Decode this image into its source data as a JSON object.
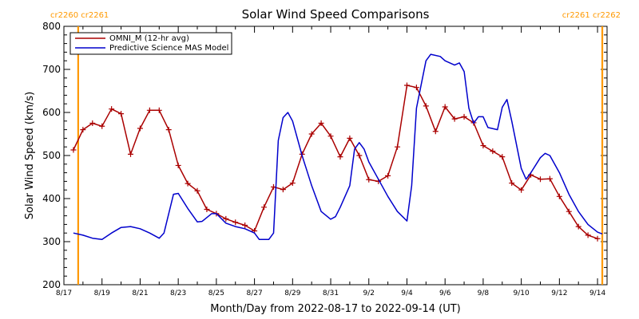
{
  "chart_data": {
    "type": "line",
    "title": "Solar Wind Speed Comparisons",
    "xlabel": "Month/Day from 2022-08-17 to 2022-09-14 (UT)",
    "ylabel": "Solar Wind Speed (km/s)",
    "x_axis": {
      "start": "2022-08-17",
      "end": "2022-09-14T12:00",
      "tick_labels": [
        "8/17",
        "8/19",
        "8/21",
        "8/23",
        "8/25",
        "8/27",
        "8/29",
        "8/31",
        "9/2",
        "9/4",
        "9/6",
        "9/8",
        "9/10",
        "9/12",
        "9/14"
      ]
    },
    "ylim": [
      200,
      800
    ],
    "y_ticks": [
      200,
      300,
      400,
      500,
      600,
      700,
      800
    ],
    "grid": false,
    "legend_position": "top-left",
    "series": [
      {
        "name": "OMNI_M (12-hr avg)",
        "color": "#aa0000",
        "marker": "plus",
        "points": [
          [
            "2022-08-17T12:00",
            513
          ],
          [
            "2022-08-18T00:00",
            560
          ],
          [
            "2022-08-18T12:00",
            575
          ],
          [
            "2022-08-19T00:00",
            568
          ],
          [
            "2022-08-19T12:00",
            608
          ],
          [
            "2022-08-20T00:00",
            597
          ],
          [
            "2022-08-20T12:00",
            503
          ],
          [
            "2022-08-21T00:00",
            563
          ],
          [
            "2022-08-21T12:00",
            605
          ],
          [
            "2022-08-22T00:00",
            605
          ],
          [
            "2022-08-22T12:00",
            560
          ],
          [
            "2022-08-23T00:00",
            477
          ],
          [
            "2022-08-23T12:00",
            435
          ],
          [
            "2022-08-24T00:00",
            418
          ],
          [
            "2022-08-24T12:00",
            375
          ],
          [
            "2022-08-25T00:00",
            365
          ],
          [
            "2022-08-25T12:00",
            353
          ],
          [
            "2022-08-26T00:00",
            345
          ],
          [
            "2022-08-26T12:00",
            338
          ],
          [
            "2022-08-27T00:00",
            325
          ],
          [
            "2022-08-27T12:00",
            380
          ],
          [
            "2022-08-28T00:00",
            427
          ],
          [
            "2022-08-28T12:00",
            421
          ],
          [
            "2022-08-29T00:00",
            436
          ],
          [
            "2022-08-29T12:00",
            503
          ],
          [
            "2022-08-30T00:00",
            550
          ],
          [
            "2022-08-30T12:00",
            575
          ],
          [
            "2022-08-31T00:00",
            545
          ],
          [
            "2022-08-31T12:00",
            497
          ],
          [
            "2022-09-01T00:00",
            540
          ],
          [
            "2022-09-01T12:00",
            500
          ],
          [
            "2022-09-02T00:00",
            444
          ],
          [
            "2022-09-02T12:00",
            440
          ],
          [
            "2022-09-03T00:00",
            453
          ],
          [
            "2022-09-03T12:00",
            520
          ],
          [
            "2022-09-04T00:00",
            663
          ],
          [
            "2022-09-04T12:00",
            658
          ],
          [
            "2022-09-05T00:00",
            615
          ],
          [
            "2022-09-05T12:00",
            556
          ],
          [
            "2022-09-06T00:00",
            613
          ],
          [
            "2022-09-06T12:00",
            585
          ],
          [
            "2022-09-07T00:00",
            590
          ],
          [
            "2022-09-07T12:00",
            576
          ],
          [
            "2022-09-08T00:00",
            523
          ],
          [
            "2022-09-08T12:00",
            510
          ],
          [
            "2022-09-09T00:00",
            497
          ],
          [
            "2022-09-09T12:00",
            436
          ],
          [
            "2022-09-10T00:00",
            420
          ],
          [
            "2022-09-10T12:00",
            455
          ],
          [
            "2022-09-11T00:00",
            445
          ],
          [
            "2022-09-11T12:00",
            446
          ],
          [
            "2022-09-12T00:00",
            405
          ],
          [
            "2022-09-12T12:00",
            370
          ],
          [
            "2022-09-13T00:00",
            335
          ],
          [
            "2022-09-13T12:00",
            315
          ],
          [
            "2022-09-14T00:00",
            307
          ]
        ]
      },
      {
        "name": "Predictive Science MAS Model",
        "color": "#0000cc",
        "marker": "none",
        "points": [
          [
            "2022-08-17T12:00",
            320
          ],
          [
            "2022-08-18T00:00",
            315
          ],
          [
            "2022-08-18T12:00",
            308
          ],
          [
            "2022-08-19T00:00",
            305
          ],
          [
            "2022-08-19T12:00",
            320
          ],
          [
            "2022-08-20T00:00",
            333
          ],
          [
            "2022-08-20T12:00",
            335
          ],
          [
            "2022-08-21T00:00",
            330
          ],
          [
            "2022-08-21T12:00",
            320
          ],
          [
            "2022-08-22T00:00",
            308
          ],
          [
            "2022-08-22T06:00",
            320
          ],
          [
            "2022-08-22T18:00",
            410
          ],
          [
            "2022-08-23T00:00",
            412
          ],
          [
            "2022-08-23T12:00",
            377
          ],
          [
            "2022-08-24T00:00",
            346
          ],
          [
            "2022-08-24T06:00",
            347
          ],
          [
            "2022-08-24T18:00",
            365
          ],
          [
            "2022-08-25T00:00",
            365
          ],
          [
            "2022-08-25T12:00",
            343
          ],
          [
            "2022-08-26T00:00",
            335
          ],
          [
            "2022-08-26T12:00",
            330
          ],
          [
            "2022-08-27T00:00",
            320
          ],
          [
            "2022-08-27T06:00",
            305
          ],
          [
            "2022-08-27T18:00",
            305
          ],
          [
            "2022-08-28T00:00",
            320
          ],
          [
            "2022-08-28T06:00",
            535
          ],
          [
            "2022-08-28T12:00",
            588
          ],
          [
            "2022-08-28T18:00",
            600
          ],
          [
            "2022-08-29T00:00",
            580
          ],
          [
            "2022-08-29T12:00",
            500
          ],
          [
            "2022-08-30T00:00",
            430
          ],
          [
            "2022-08-30T12:00",
            370
          ],
          [
            "2022-08-31T00:00",
            352
          ],
          [
            "2022-08-31T06:00",
            358
          ],
          [
            "2022-08-31T12:00",
            380
          ],
          [
            "2022-09-01T00:00",
            430
          ],
          [
            "2022-09-01T06:00",
            515
          ],
          [
            "2022-09-01T12:00",
            530
          ],
          [
            "2022-09-01T18:00",
            515
          ],
          [
            "2022-09-02T00:00",
            485
          ],
          [
            "2022-09-02T12:00",
            445
          ],
          [
            "2022-09-03T00:00",
            405
          ],
          [
            "2022-09-03T12:00",
            370
          ],
          [
            "2022-09-04T00:00",
            348
          ],
          [
            "2022-09-04T06:00",
            430
          ],
          [
            "2022-09-04T12:00",
            610
          ],
          [
            "2022-09-05T00:00",
            720
          ],
          [
            "2022-09-05T06:00",
            735
          ],
          [
            "2022-09-05T18:00",
            730
          ],
          [
            "2022-09-06T00:00",
            720
          ],
          [
            "2022-09-06T12:00",
            710
          ],
          [
            "2022-09-06T18:00",
            715
          ],
          [
            "2022-09-07T00:00",
            695
          ],
          [
            "2022-09-07T06:00",
            610
          ],
          [
            "2022-09-07T12:00",
            575
          ],
          [
            "2022-09-07T18:00",
            590
          ],
          [
            "2022-09-08T00:00",
            590
          ],
          [
            "2022-09-08T06:00",
            565
          ],
          [
            "2022-09-08T18:00",
            560
          ],
          [
            "2022-09-09T00:00",
            612
          ],
          [
            "2022-09-09T06:00",
            630
          ],
          [
            "2022-09-09T12:00",
            580
          ],
          [
            "2022-09-10T00:00",
            470
          ],
          [
            "2022-09-10T06:00",
            445
          ],
          [
            "2022-09-10T12:00",
            460
          ],
          [
            "2022-09-11T00:00",
            495
          ],
          [
            "2022-09-11T06:00",
            505
          ],
          [
            "2022-09-11T12:00",
            500
          ],
          [
            "2022-09-12T00:00",
            460
          ],
          [
            "2022-09-12T12:00",
            410
          ],
          [
            "2022-09-13T00:00",
            370
          ],
          [
            "2022-09-13T12:00",
            340
          ],
          [
            "2022-09-14T00:00",
            322
          ],
          [
            "2022-09-14T06:00",
            318
          ]
        ]
      }
    ],
    "markers": {
      "color": "#ff9900",
      "lines": [
        {
          "date": "2022-08-17T18:00",
          "labels": [
            "cr2260",
            "cr2261"
          ]
        },
        {
          "date": "2022-09-14T06:00",
          "labels": [
            "cr2261",
            "cr2262"
          ]
        }
      ]
    }
  }
}
